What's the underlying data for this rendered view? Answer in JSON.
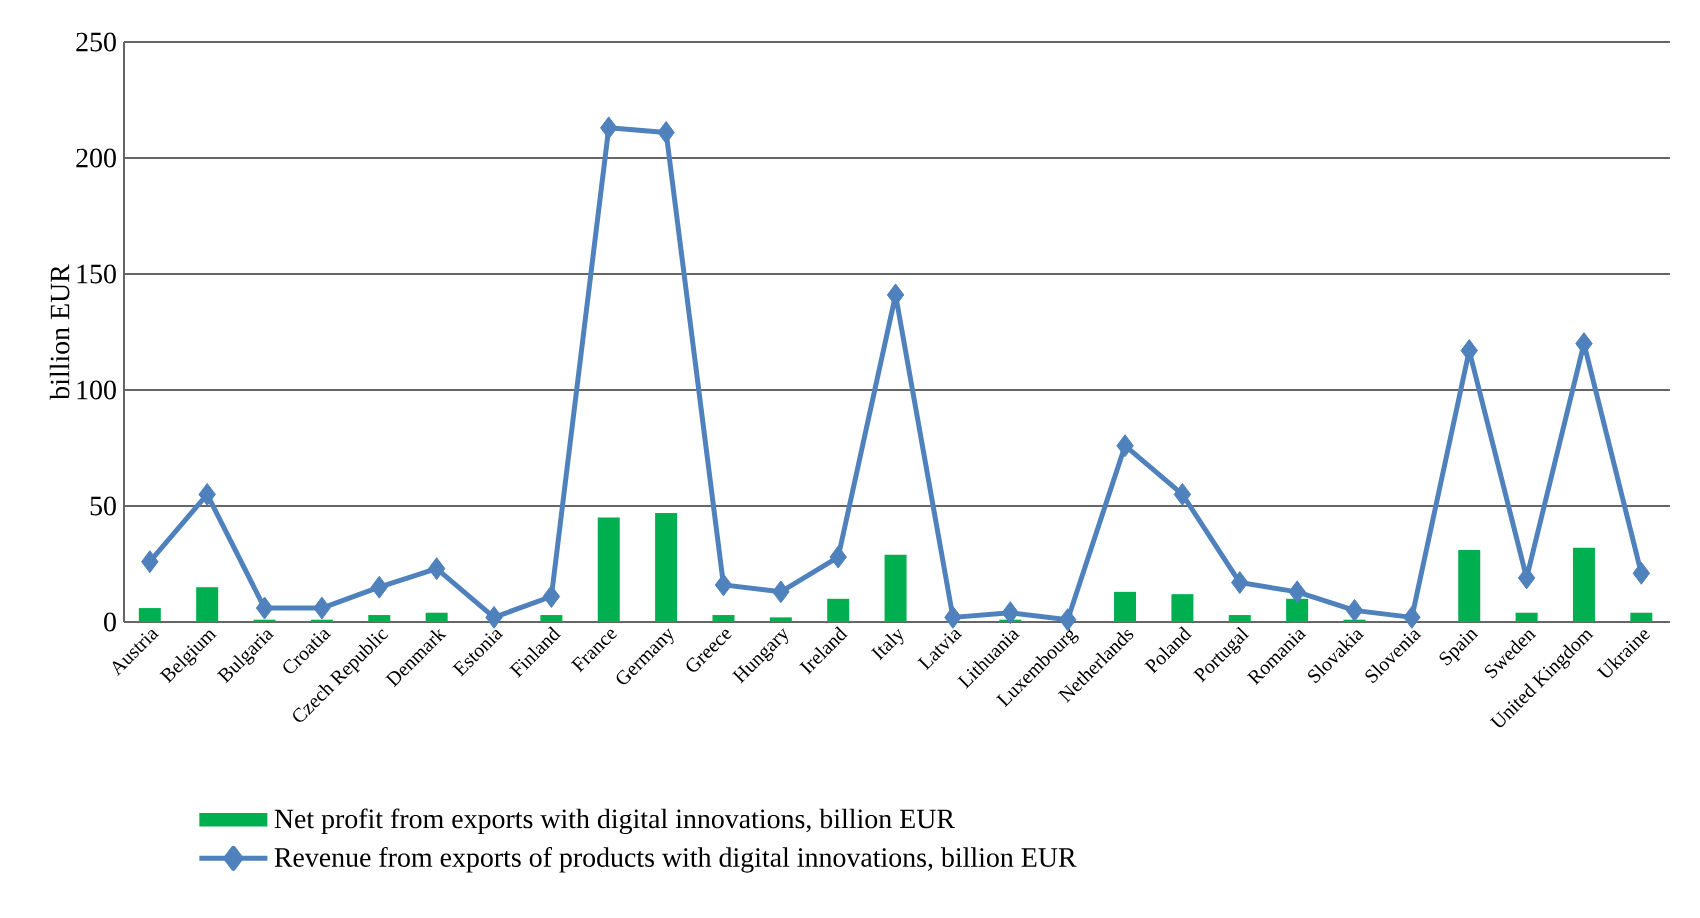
{
  "chart_data": {
    "type": "bar",
    "ylabel": "billion  EUR",
    "categories": [
      "Austria",
      "Belgium",
      "Bulgaria",
      "Croatia",
      "Czech Republic",
      "Denmark",
      "Estonia",
      "Finland",
      "France",
      "Germany",
      "Greece",
      "Hungary",
      "Ireland",
      "Italy",
      "Latvia",
      "Lithuania",
      "Luxembourg",
      "Netherlands",
      "Poland",
      "Portugal",
      "Romania",
      "Slovakia",
      "Slovenia",
      "Spain",
      "Sweden",
      "United Kingdom",
      "Ukraine"
    ],
    "series": [
      {
        "name": "Net profit from exports with digital innovations, billion EUR",
        "color": "#00b050",
        "values": [
          6,
          15,
          1,
          1,
          3,
          4,
          null,
          3,
          45,
          47,
          3,
          2,
          10,
          29,
          null,
          1,
          null,
          13,
          12,
          3,
          10,
          1,
          null,
          31,
          4,
          32,
          4
        ]
      },
      {
        "name": "Revenue from exports of products with digital innovations, billion EUR",
        "type": "line",
        "color": "#4f81bd",
        "marker": "diamond",
        "values": [
          26,
          55,
          6,
          6,
          15,
          23,
          2,
          11,
          213,
          211,
          16,
          13,
          28,
          141,
          2,
          4,
          1,
          76,
          55,
          17,
          13,
          5,
          2,
          117,
          19,
          120,
          21
        ]
      }
    ],
    "ylim": [
      0,
      250
    ],
    "yticks": [
      0,
      50,
      100,
      150,
      200,
      250
    ],
    "grid": "y",
    "legend": "bottom"
  }
}
